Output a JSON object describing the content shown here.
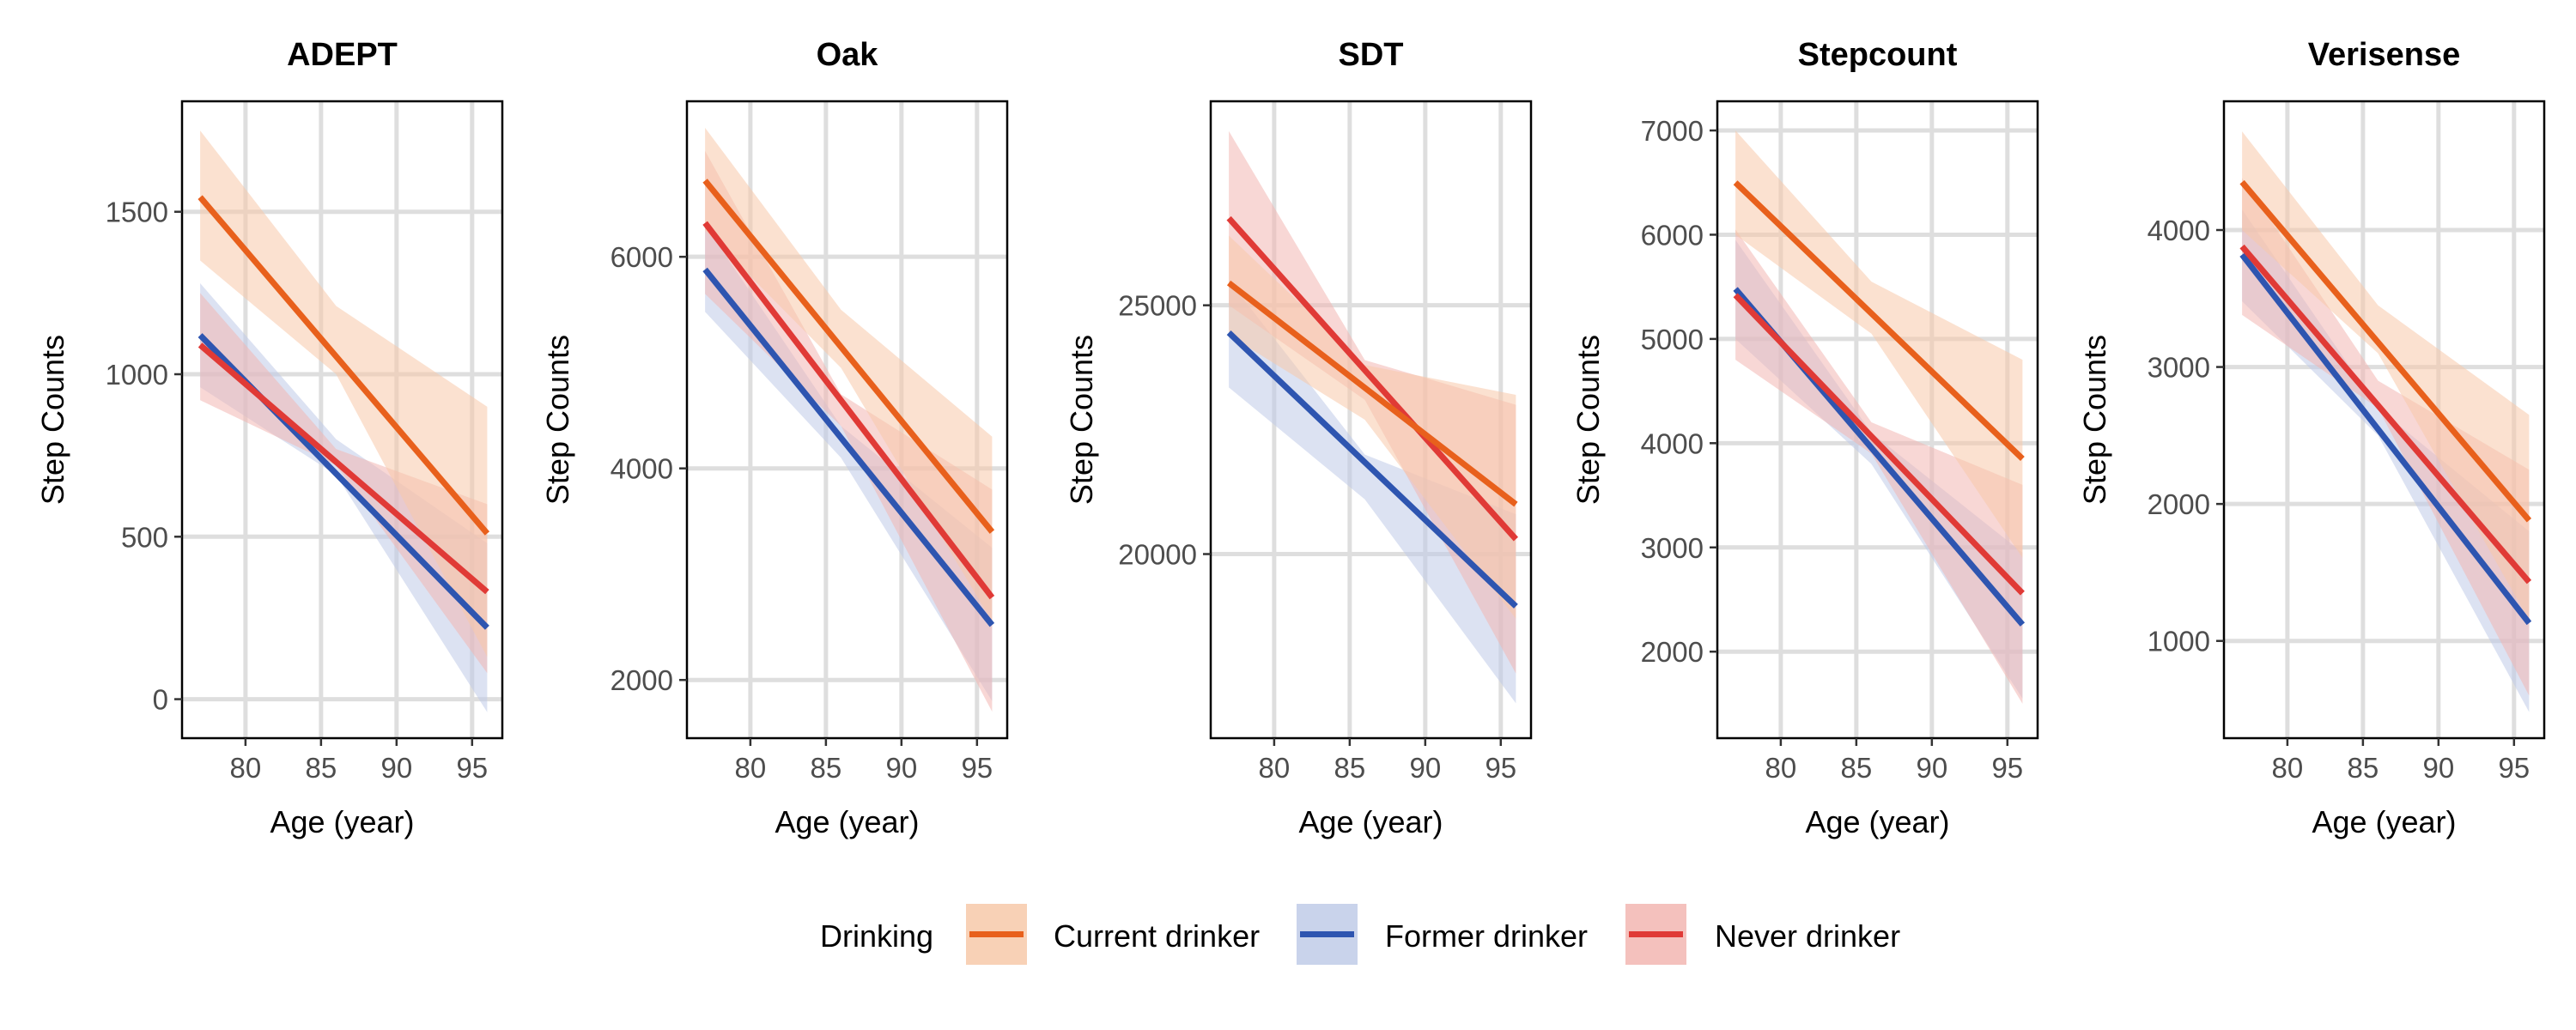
{
  "legend": {
    "title": "Drinking",
    "entries": [
      {
        "name": "Current drinker",
        "color": "#E8601C",
        "fill": "#F7C9A9"
      },
      {
        "name": "Former drinker",
        "color": "#2E55B0",
        "fill": "#BFCBE8"
      },
      {
        "name": "Never drinker",
        "color": "#E03A36",
        "fill": "#F2B6B2"
      }
    ]
  },
  "chart_data": [
    {
      "type": "line",
      "title": "ADEPT",
      "xlabel": "Age (year)",
      "ylabel": "Step Counts",
      "xlim": [
        75.8,
        97.0
      ],
      "ylim": [
        -120,
        1840
      ],
      "xticks": [
        80,
        85,
        90,
        95
      ],
      "yticks": [
        0,
        500,
        1000,
        1500
      ],
      "series": [
        {
          "name": "Current drinker",
          "x": [
            77,
            96
          ],
          "y": [
            1545,
            510
          ],
          "lower": [
            [
              77,
              1350
            ],
            [
              86,
              1000
            ],
            [
              96,
              130
            ]
          ],
          "upper": [
            [
              77,
              1750
            ],
            [
              86,
              1210
            ],
            [
              96,
              900
            ]
          ]
        },
        {
          "name": "Former drinker",
          "x": [
            77,
            96
          ],
          "y": [
            1120,
            220
          ],
          "lower": [
            [
              77,
              960
            ],
            [
              86,
              690
            ],
            [
              96,
              -40
            ]
          ],
          "upper": [
            [
              77,
              1280
            ],
            [
              86,
              800
            ],
            [
              96,
              480
            ]
          ]
        },
        {
          "name": "Never drinker",
          "x": [
            77,
            96
          ],
          "y": [
            1090,
            330
          ],
          "lower": [
            [
              77,
              920
            ],
            [
              86,
              720
            ],
            [
              96,
              80
            ]
          ],
          "upper": [
            [
              77,
              1250
            ],
            [
              86,
              770
            ],
            [
              96,
              600
            ]
          ]
        }
      ]
    },
    {
      "type": "line",
      "title": "Oak",
      "xlabel": "Age (year)",
      "ylabel": "Step Counts",
      "xlim": [
        75.8,
        97.0
      ],
      "ylim": [
        1450,
        7470
      ],
      "xticks": [
        80,
        85,
        90,
        95
      ],
      "yticks": [
        2000,
        4000,
        6000
      ],
      "series": [
        {
          "name": "Current drinker",
          "x": [
            77,
            96
          ],
          "y": [
            6720,
            3400
          ],
          "lower": [
            [
              77,
              6250
            ],
            [
              86,
              4950
            ],
            [
              96,
              2550
            ]
          ],
          "upper": [
            [
              77,
              7220
            ],
            [
              86,
              5500
            ],
            [
              96,
              4300
            ]
          ]
        },
        {
          "name": "Former drinker",
          "x": [
            77,
            96
          ],
          "y": [
            5880,
            2520
          ],
          "lower": [
            [
              77,
              5480
            ],
            [
              86,
              4100
            ],
            [
              96,
              1800
            ]
          ],
          "upper": [
            [
              77,
              6300
            ],
            [
              86,
              4400
            ],
            [
              96,
              3250
            ]
          ]
        },
        {
          "name": "Never drinker",
          "x": [
            77,
            96
          ],
          "y": [
            6320,
            2780
          ],
          "lower": [
            [
              77,
              5650
            ],
            [
              86,
              4400
            ],
            [
              96,
              1700
            ]
          ],
          "upper": [
            [
              77,
              7000
            ],
            [
              86,
              4700
            ],
            [
              96,
              3800
            ]
          ]
        }
      ]
    },
    {
      "type": "line",
      "title": "SDT",
      "xlabel": "Age (year)",
      "ylabel": "Step Counts",
      "xlim": [
        75.8,
        97.0
      ],
      "ylim": [
        16300,
        29100
      ],
      "xticks": [
        80,
        85,
        90,
        95
      ],
      "yticks": [
        20000,
        25000
      ],
      "series": [
        {
          "name": "Current drinker",
          "x": [
            77,
            96
          ],
          "y": [
            25450,
            21000
          ],
          "lower": [
            [
              77,
              24400
            ],
            [
              86,
              22700
            ],
            [
              96,
              18700
            ]
          ],
          "upper": [
            [
              77,
              26400
            ],
            [
              86,
              23800
            ],
            [
              96,
              23200
            ]
          ]
        },
        {
          "name": "Former drinker",
          "x": [
            77,
            96
          ],
          "y": [
            24450,
            18950
          ],
          "lower": [
            [
              77,
              23350
            ],
            [
              86,
              21100
            ],
            [
              96,
              17000
            ]
          ],
          "upper": [
            [
              77,
              25500
            ],
            [
              86,
              22000
            ],
            [
              96,
              20800
            ]
          ]
        },
        {
          "name": "Never drinker",
          "x": [
            77,
            96
          ],
          "y": [
            26750,
            20300
          ],
          "lower": [
            [
              77,
              25000
            ],
            [
              86,
              23100
            ],
            [
              96,
              17600
            ]
          ],
          "upper": [
            [
              77,
              28500
            ],
            [
              86,
              23900
            ],
            [
              96,
              23000
            ]
          ]
        }
      ]
    },
    {
      "type": "line",
      "title": "Stepcount",
      "xlabel": "Age (year)",
      "ylabel": "Step Counts",
      "xlim": [
        75.8,
        97.0
      ],
      "ylim": [
        1170,
        7280
      ],
      "xticks": [
        80,
        85,
        90,
        95
      ],
      "yticks": [
        2000,
        3000,
        4000,
        5000,
        6000,
        7000
      ],
      "series": [
        {
          "name": "Current drinker",
          "x": [
            77,
            96
          ],
          "y": [
            6500,
            3850
          ],
          "lower": [
            [
              77,
              6000
            ],
            [
              86,
              5050
            ],
            [
              96,
              2900
            ]
          ],
          "upper": [
            [
              77,
              7000
            ],
            [
              86,
              5550
            ],
            [
              96,
              4800
            ]
          ]
        },
        {
          "name": "Former drinker",
          "x": [
            77,
            96
          ],
          "y": [
            5480,
            2260
          ],
          "lower": [
            [
              77,
              5000
            ],
            [
              86,
              3800
            ],
            [
              96,
              1550
            ]
          ],
          "upper": [
            [
              77,
              5950
            ],
            [
              86,
              4100
            ],
            [
              96,
              2950
            ]
          ]
        },
        {
          "name": "Never drinker",
          "x": [
            77,
            96
          ],
          "y": [
            5420,
            2560
          ],
          "lower": [
            [
              77,
              4800
            ],
            [
              86,
              3900
            ],
            [
              96,
              1500
            ]
          ],
          "upper": [
            [
              77,
              6050
            ],
            [
              86,
              4200
            ],
            [
              96,
              3600
            ]
          ]
        }
      ]
    },
    {
      "type": "line",
      "title": "Verisense",
      "xlabel": "Age (year)",
      "ylabel": "Step Counts",
      "xlim": [
        75.8,
        97.0
      ],
      "ylim": [
        290,
        4940
      ],
      "xticks": [
        80,
        85,
        90,
        95
      ],
      "yticks": [
        1000,
        2000,
        3000,
        4000
      ],
      "series": [
        {
          "name": "Current drinker",
          "x": [
            77,
            96
          ],
          "y": [
            4350,
            1880
          ],
          "lower": [
            [
              77,
              4000
            ],
            [
              86,
              3100
            ],
            [
              96,
              1150
            ]
          ],
          "upper": [
            [
              77,
              4720
            ],
            [
              86,
              3450
            ],
            [
              96,
              2650
            ]
          ]
        },
        {
          "name": "Former drinker",
          "x": [
            77,
            96
          ],
          "y": [
            3820,
            1130
          ],
          "lower": [
            [
              77,
              3480
            ],
            [
              86,
              2500
            ],
            [
              96,
              480
            ]
          ],
          "upper": [
            [
              77,
              4150
            ],
            [
              86,
              2700
            ],
            [
              96,
              1800
            ]
          ]
        },
        {
          "name": "Never drinker",
          "x": [
            77,
            96
          ],
          "y": [
            3880,
            1430
          ],
          "lower": [
            [
              77,
              3380
            ],
            [
              86,
              2700
            ],
            [
              96,
              600
            ]
          ],
          "upper": [
            [
              77,
              4380
            ],
            [
              86,
              2900
            ],
            [
              96,
              2250
            ]
          ]
        }
      ]
    }
  ]
}
